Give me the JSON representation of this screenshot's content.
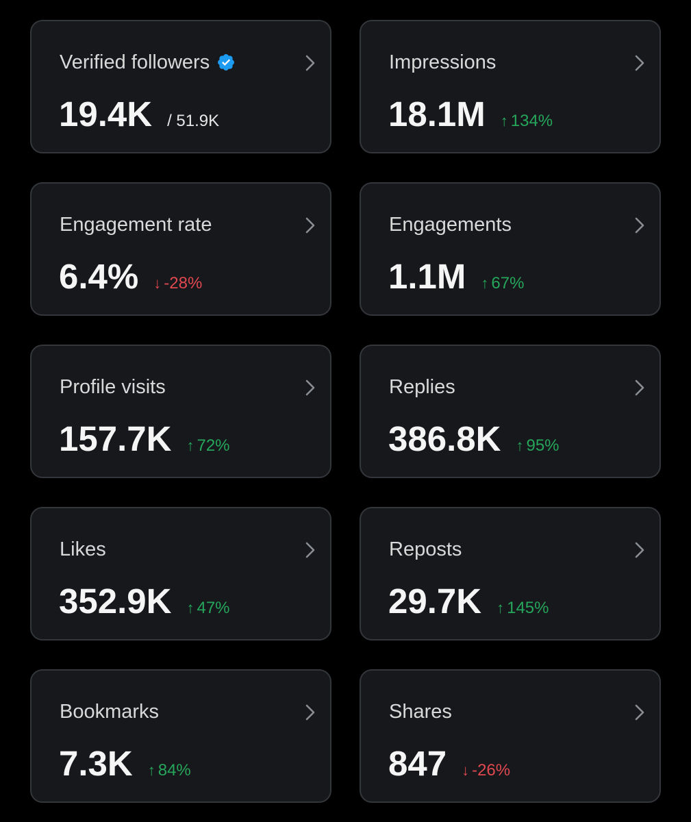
{
  "cards": [
    {
      "title": "Verified followers",
      "value": "19.4K",
      "sub": "/ 51.9K",
      "verified": true
    },
    {
      "title": "Impressions",
      "value": "18.1M",
      "delta": "134%",
      "direction": "up"
    },
    {
      "title": "Engagement rate",
      "value": "6.4%",
      "delta": "-28%",
      "direction": "down"
    },
    {
      "title": "Engagements",
      "value": "1.1M",
      "delta": "67%",
      "direction": "up"
    },
    {
      "title": "Profile visits",
      "value": "157.7K",
      "delta": "72%",
      "direction": "up"
    },
    {
      "title": "Replies",
      "value": "386.8K",
      "delta": "95%",
      "direction": "up"
    },
    {
      "title": "Likes",
      "value": "352.9K",
      "delta": "47%",
      "direction": "up"
    },
    {
      "title": "Reposts",
      "value": "29.7K",
      "delta": "145%",
      "direction": "up"
    },
    {
      "title": "Bookmarks",
      "value": "7.3K",
      "delta": "84%",
      "direction": "up"
    },
    {
      "title": "Shares",
      "value": "847",
      "delta": "-26%",
      "direction": "down"
    }
  ],
  "arrows": {
    "up": "↑",
    "down": "↓"
  },
  "colors": {
    "background": "#000000",
    "card": "#16181c",
    "border": "#33363b",
    "up": "#26a65b",
    "down": "#e0484f",
    "verified": "#1d9bf0"
  },
  "icons": {
    "chevron": "chevron-right-icon",
    "verified": "verified-badge-icon"
  }
}
